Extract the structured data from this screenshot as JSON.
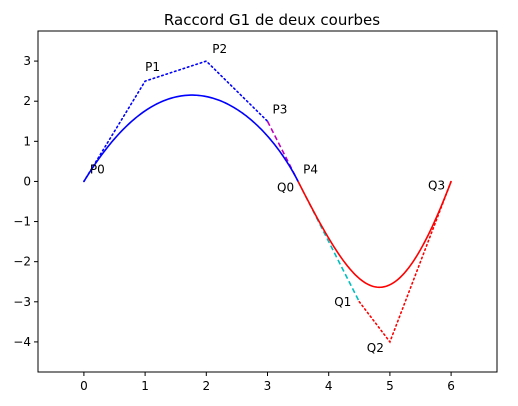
{
  "chart_data": {
    "type": "line",
    "title": "Raccord G1 de deux courbes",
    "xlabel": "",
    "ylabel": "",
    "xlim": [
      -0.75,
      6.75
    ],
    "ylim": [
      -4.75,
      3.75
    ],
    "xticks": [
      0,
      1,
      2,
      3,
      4,
      5,
      6
    ],
    "yticks": [
      3,
      2,
      1,
      0,
      -1,
      -2,
      -3,
      -4
    ],
    "xtick_labels": [
      "0",
      "1",
      "2",
      "3",
      "4",
      "5",
      "6"
    ],
    "ytick_labels": [
      "3",
      "2",
      "1",
      "0",
      "−1",
      "−2",
      "−3",
      "−4"
    ],
    "grid": false,
    "legend": null,
    "curve1": {
      "control_points": [
        {
          "label": "P0",
          "x": 0,
          "y": 0
        },
        {
          "label": "P1",
          "x": 1,
          "y": 2.5
        },
        {
          "label": "P2",
          "x": 2,
          "y": 3
        },
        {
          "label": "P3",
          "x": 3,
          "y": 1.5
        },
        {
          "label": "P4",
          "x": 3.5,
          "y": 0
        }
      ],
      "curve_color": "#0000ff",
      "polygon_color": "#0000ff",
      "tangent_color": "#bf00bf"
    },
    "curve2": {
      "control_points": [
        {
          "label": "Q0",
          "x": 3.5,
          "y": 0
        },
        {
          "label": "Q1",
          "x": 4.5,
          "y": -3
        },
        {
          "label": "Q2",
          "x": 5,
          "y": -4
        },
        {
          "label": "Q3",
          "x": 6,
          "y": 0
        }
      ],
      "curve_color": "#ff0000",
      "polygon_color": "#ff0000",
      "tangent_color": "#00bfbf"
    }
  }
}
